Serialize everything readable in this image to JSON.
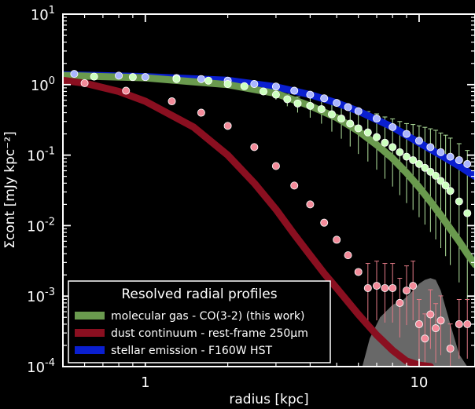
{
  "chart_data": {
    "type": "scatter",
    "xlabel": "radius [kpc]",
    "ylabel": "Σcont [mJy kpc⁻²]",
    "xscale": "log",
    "yscale": "log",
    "xlim": [
      0.5,
      16
    ],
    "ylim": [
      0.0001,
      10
    ],
    "x_tick_labels": [
      {
        "value": 1,
        "label": "1"
      },
      {
        "value": 10,
        "label": "10"
      }
    ],
    "y_tick_labels": [
      {
        "value": 0.0001,
        "base": "10",
        "exp": "-4"
      },
      {
        "value": 0.001,
        "base": "10",
        "exp": "-3"
      },
      {
        "value": 0.01,
        "base": "10",
        "exp": "-2"
      },
      {
        "value": 0.1,
        "base": "10",
        "exp": "-1"
      },
      {
        "value": 1,
        "base": "10",
        "exp": "0"
      },
      {
        "value": 10,
        "base": "10",
        "exp": "1"
      }
    ],
    "grid": false,
    "legend": {
      "title": "Resolved radial profiles",
      "position": "bottom-left",
      "entries": [
        {
          "label": "molecular gas - CO(3-2) (this work)",
          "color": "#6a9a4e"
        },
        {
          "label": "dust continuum - rest-frame 250μm",
          "color": "#8a0f20"
        },
        {
          "label": "stellar emission - F160W HST",
          "color": "#0a1fd0"
        }
      ]
    },
    "colors": {
      "co_line": "#6a9a4e",
      "co_points": "#ccffbe",
      "co_errors": "#b5e6a0",
      "dust_line": "#8a0f20",
      "dust_points": "#f38b9a",
      "dust_errors": "#e27a86",
      "stellar_line": "#0a1fd0",
      "stellar_points": "#aab5ff",
      "shade": "#7a7a7a"
    },
    "model_curves": [
      {
        "id": "stellar",
        "x": [
          0.5,
          1,
          2,
          3,
          4,
          5,
          6,
          8,
          10,
          12,
          14,
          16
        ],
        "y": [
          1.38,
          1.3,
          1.15,
          0.93,
          0.72,
          0.55,
          0.42,
          0.25,
          0.15,
          0.1,
          0.07,
          0.05
        ]
      },
      {
        "id": "co",
        "x": [
          0.5,
          1,
          2,
          3,
          4,
          5,
          6,
          7,
          8,
          9,
          10,
          11,
          12,
          13,
          14,
          15,
          16
        ],
        "y": [
          1.35,
          1.25,
          1.0,
          0.75,
          0.5,
          0.34,
          0.22,
          0.14,
          0.09,
          0.056,
          0.035,
          0.022,
          0.014,
          0.009,
          0.006,
          0.004,
          0.0028
        ]
      },
      {
        "id": "dust",
        "x": [
          0.5,
          0.6,
          0.8,
          1,
          1.5,
          2,
          2.5,
          3,
          3.5,
          4,
          4.5,
          5,
          6,
          7,
          8,
          9,
          10,
          11
        ],
        "y": [
          1.15,
          1.05,
          0.8,
          0.58,
          0.25,
          0.1,
          0.04,
          0.017,
          0.0075,
          0.0038,
          0.0021,
          0.0013,
          0.00055,
          0.00028,
          0.00017,
          0.00012,
          0.000105,
          0.0001
        ]
      }
    ],
    "series": [
      {
        "id": "stellar",
        "points": [
          {
            "x": 0.55,
            "y": 1.42
          },
          {
            "x": 0.8,
            "y": 1.34
          },
          {
            "x": 1.0,
            "y": 1.28
          },
          {
            "x": 1.3,
            "y": 1.24
          },
          {
            "x": 1.6,
            "y": 1.2
          },
          {
            "x": 2.0,
            "y": 1.14
          },
          {
            "x": 2.5,
            "y": 1.02
          },
          {
            "x": 3.0,
            "y": 0.94
          },
          {
            "x": 3.5,
            "y": 0.82
          },
          {
            "x": 4.0,
            "y": 0.72
          },
          {
            "x": 4.5,
            "y": 0.64
          },
          {
            "x": 5.0,
            "y": 0.55
          },
          {
            "x": 5.5,
            "y": 0.48
          },
          {
            "x": 6.0,
            "y": 0.42
          },
          {
            "x": 7.0,
            "y": 0.33
          },
          {
            "x": 8.0,
            "y": 0.25
          },
          {
            "x": 9.0,
            "y": 0.2
          },
          {
            "x": 10.0,
            "y": 0.16
          },
          {
            "x": 11.0,
            "y": 0.13
          },
          {
            "x": 12.0,
            "y": 0.11
          },
          {
            "x": 13.0,
            "y": 0.095
          },
          {
            "x": 14.0,
            "y": 0.085
          },
          {
            "x": 15.0,
            "y": 0.075
          }
        ]
      },
      {
        "id": "co",
        "points": [
          {
            "x": 0.65,
            "y": 1.3
          },
          {
            "x": 0.9,
            "y": 1.28
          },
          {
            "x": 1.3,
            "y": 1.2
          },
          {
            "x": 1.7,
            "y": 1.14
          },
          {
            "x": 2.0,
            "y": 1.02
          },
          {
            "x": 2.3,
            "y": 0.95
          },
          {
            "x": 2.7,
            "y": 0.8
          },
          {
            "x": 3.0,
            "y": 0.72
          },
          {
            "x": 3.3,
            "y": 0.62
          },
          {
            "x": 3.6,
            "y": 0.54
          },
          {
            "x": 4.0,
            "y": 0.5
          },
          {
            "x": 4.4,
            "y": 0.45
          },
          {
            "x": 4.8,
            "y": 0.38
          },
          {
            "x": 5.2,
            "y": 0.33
          },
          {
            "x": 5.6,
            "y": 0.28
          },
          {
            "x": 6.0,
            "y": 0.24
          },
          {
            "x": 6.5,
            "y": 0.21
          },
          {
            "x": 7.0,
            "y": 0.18
          },
          {
            "x": 7.5,
            "y": 0.15
          },
          {
            "x": 8.0,
            "y": 0.13
          },
          {
            "x": 8.5,
            "y": 0.11
          },
          {
            "x": 9.0,
            "y": 0.095
          },
          {
            "x": 9.5,
            "y": 0.085
          },
          {
            "x": 10.0,
            "y": 0.075
          },
          {
            "x": 10.5,
            "y": 0.066
          },
          {
            "x": 11.0,
            "y": 0.058
          },
          {
            "x": 11.5,
            "y": 0.051
          },
          {
            "x": 12.0,
            "y": 0.043
          },
          {
            "x": 12.5,
            "y": 0.037
          },
          {
            "x": 13.0,
            "y": 0.031
          },
          {
            "x": 14.0,
            "y": 0.022
          },
          {
            "x": 15.0,
            "y": 0.015
          }
        ]
      },
      {
        "id": "dust",
        "points": [
          {
            "x": 0.6,
            "y": 1.05
          },
          {
            "x": 0.85,
            "y": 0.82
          },
          {
            "x": 1.25,
            "y": 0.58
          },
          {
            "x": 1.6,
            "y": 0.4
          },
          {
            "x": 2.0,
            "y": 0.26
          },
          {
            "x": 2.5,
            "y": 0.13
          },
          {
            "x": 3.0,
            "y": 0.07
          },
          {
            "x": 3.5,
            "y": 0.037
          },
          {
            "x": 4.0,
            "y": 0.02
          },
          {
            "x": 4.5,
            "y": 0.011
          },
          {
            "x": 5.0,
            "y": 0.0063
          },
          {
            "x": 5.5,
            "y": 0.0038
          },
          {
            "x": 6.0,
            "y": 0.0022
          },
          {
            "x": 6.5,
            "y": 0.0013
          },
          {
            "x": 7.0,
            "y": 0.0014
          },
          {
            "x": 7.5,
            "y": 0.0013
          },
          {
            "x": 8.0,
            "y": 0.0013
          },
          {
            "x": 8.5,
            "y": 0.0008
          },
          {
            "x": 9.0,
            "y": 0.0012
          },
          {
            "x": 9.5,
            "y": 0.0014
          },
          {
            "x": 10.0,
            "y": 0.0004
          },
          {
            "x": 10.5,
            "y": 0.00025
          },
          {
            "x": 11.0,
            "y": 0.00055
          },
          {
            "x": 11.5,
            "y": 0.00035
          },
          {
            "x": 12.0,
            "y": 0.00045
          },
          {
            "x": 13.0,
            "y": 0.00018
          },
          {
            "x": 14.0,
            "y": 0.0004
          },
          {
            "x": 15.0,
            "y": 0.0004
          }
        ]
      }
    ],
    "shaded_region": {
      "x": [
        6.2,
        6.6,
        7.2,
        8.0,
        8.8,
        9.5,
        10.0,
        10.5,
        11.0,
        11.5,
        12.0,
        13.0,
        14.0,
        15.0
      ],
      "y": [
        0.0001,
        0.00025,
        0.0005,
        0.00075,
        0.0009,
        0.0012,
        0.0015,
        0.0017,
        0.0018,
        0.0017,
        0.0012,
        0.0004,
        0.00015,
        0.0001
      ]
    }
  }
}
